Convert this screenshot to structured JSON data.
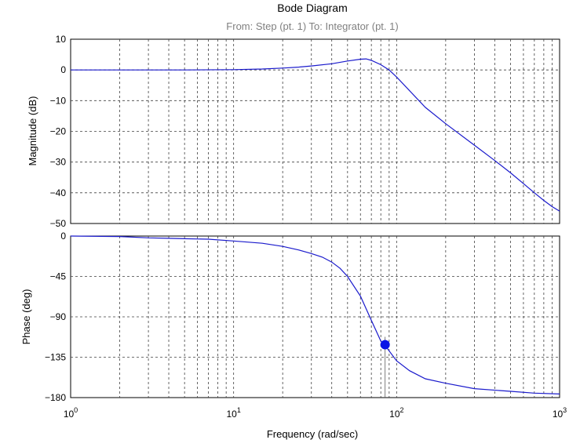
{
  "chart_data": {
    "type": "line",
    "title": "Bode Diagram",
    "subtitle": "From: Step (pt. 1)  To: Integrator (pt. 1)",
    "xlabel": "Frequency  (rad/sec)",
    "xscale": "log",
    "xlim": [
      1,
      1000
    ],
    "x_ticks": [
      {
        "value": 1,
        "base": "10",
        "exp": "0"
      },
      {
        "value": 10,
        "base": "10",
        "exp": "1"
      },
      {
        "value": 100,
        "base": "10",
        "exp": "2"
      },
      {
        "value": 1000,
        "base": "10",
        "exp": "3"
      }
    ],
    "grid": true,
    "colors": {
      "trace": "#1a1acc",
      "marker": "#0a14e6",
      "subtitle": "#808080"
    },
    "panels": [
      {
        "id": "magnitude",
        "ylabel": "Magnitude (dB)",
        "ylim": [
          -50,
          10
        ],
        "yticks": [
          10,
          0,
          -10,
          -20,
          -30,
          -40,
          -50
        ],
        "ytick_labels": [
          "10",
          "0",
          "−10",
          "−20",
          "−30",
          "−40",
          "−50"
        ],
        "series": [
          {
            "x": [
              1,
              2,
              5,
              10,
              15,
              20,
              25,
              30,
              40,
              50,
              60,
              65,
              70,
              80,
              90,
              100,
              150,
              200,
              300,
              400,
              500,
              600,
              700,
              800,
              900,
              1000
            ],
            "y": [
              0,
              0,
              0,
              0.1,
              0.3,
              0.6,
              0.9,
              1.3,
              2.0,
              2.9,
              3.5,
              3.6,
              3.1,
              1.7,
              0,
              -2.3,
              -12.2,
              -17.5,
              -24.5,
              -29.5,
              -33.5,
              -37,
              -40,
              -42.5,
              -44.5,
              -46
            ]
          }
        ]
      },
      {
        "id": "phase",
        "ylabel": "Phase (deg)",
        "ylim": [
          -180,
          0
        ],
        "yticks": [
          0,
          -45,
          -90,
          -135,
          -180
        ],
        "ytick_labels": [
          "0",
          "−45",
          "−90",
          "−135",
          "−180"
        ],
        "series": [
          {
            "x": [
              1,
              2,
              3,
              4,
              5,
              7,
              10,
              15,
              20,
              25,
              30,
              35,
              40,
              45,
              50,
              60,
              70,
              80,
              85,
              100,
              120,
              150,
              200,
              300,
              500,
              700,
              1000
            ],
            "y": [
              0,
              -0.5,
              -2,
              -2.5,
              -3,
              -3.5,
              -5.5,
              -8,
              -11.5,
              -15.5,
              -19.5,
              -23.5,
              -29,
              -36,
              -45,
              -67,
              -94,
              -117,
              -122,
              -139,
              -150,
              -159,
              -164,
              -170,
              -173,
              -175,
              -176
            ]
          }
        ],
        "markers": [
          {
            "x": 85,
            "y": -121
          }
        ]
      }
    ]
  }
}
